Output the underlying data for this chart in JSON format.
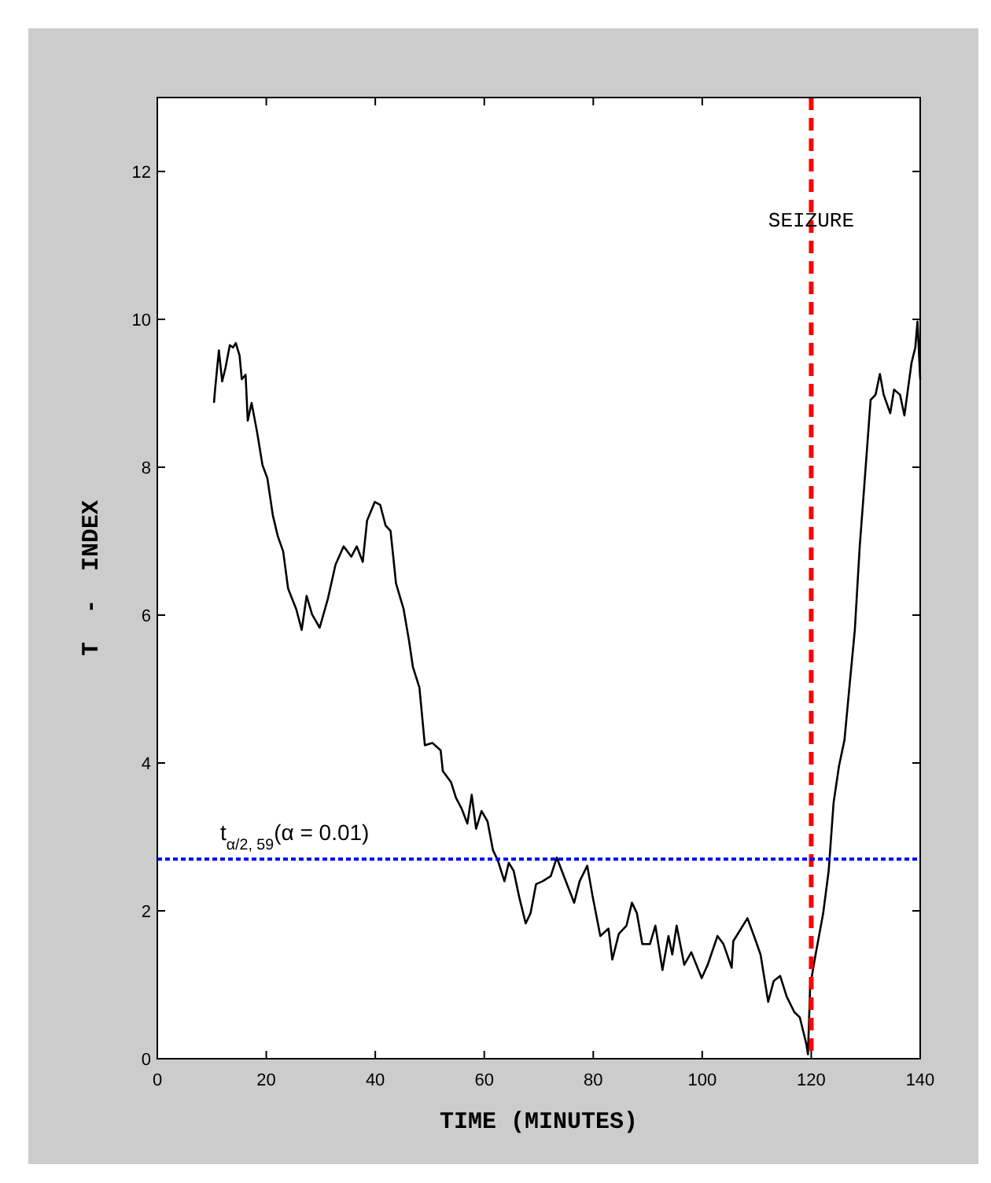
{
  "chart_data": {
    "type": "line",
    "xlabel": "TIME (MINUTES)",
    "ylabel": "T  -  INDEX",
    "xlim": [
      0,
      140
    ],
    "ylim": [
      0,
      13
    ],
    "xticks": [
      0,
      20,
      40,
      60,
      80,
      100,
      120,
      140
    ],
    "yticks": [
      0,
      2,
      4,
      6,
      8,
      10,
      12
    ],
    "grid": false,
    "marker": "none",
    "line_style": "solid",
    "series": [
      {
        "color": "#000000",
        "x": [
          10.4,
          10.6,
          11.3,
          11.9,
          12.5,
          13.3,
          13.9,
          14.4,
          15.1,
          15.5,
          16.2,
          16.6,
          17.3,
          18.3,
          19.3,
          20.2,
          21.2,
          22.1,
          23.1,
          24.0,
          25.5,
          26.5,
          27.4,
          28.4,
          29.8,
          31.3,
          32.7,
          34.2,
          35.6,
          36.6,
          37.7,
          38.5,
          39.9,
          40.9,
          41.9,
          42.8,
          43.3,
          43.8,
          45.2,
          46.2,
          46.9,
          48.1,
          49.1,
          50.5,
          52.0,
          52.4,
          53.9,
          54.8,
          55.8,
          56.9,
          57.7,
          58.5,
          59.5,
          60.6,
          61.6,
          62.5,
          63.7,
          64.5,
          65.4,
          66.4,
          67.6,
          68.5,
          69.5,
          70.7,
          72.2,
          73.3,
          74.6,
          76.5,
          77.5,
          78.9,
          79.9,
          81.3,
          82.8,
          83.5,
          84.7,
          86.1,
          87.1,
          88.0,
          89.0,
          90.4,
          91.4,
          92.7,
          93.8,
          94.5,
          95.3,
          96.7,
          98.0,
          99.9,
          101.0,
          102.8,
          103.9,
          105.4,
          105.7,
          108.3,
          109.7,
          110.7,
          112.1,
          113.1,
          114.3,
          115.5,
          116.9,
          117.9,
          118.5,
          119.1,
          119.4,
          119.8,
          120.8,
          122.2,
          123.2,
          124.1,
          125.1,
          126.1,
          127.0,
          128.0,
          128.9,
          129.7,
          130.9,
          131.8,
          132.6,
          133.3,
          134.5,
          135.2,
          136.3,
          137.1,
          138.4,
          139.1,
          139.5,
          140
        ],
        "values": [
          8.87,
          9.05,
          9.58,
          9.16,
          9.34,
          9.65,
          9.62,
          9.68,
          9.51,
          9.19,
          9.25,
          8.63,
          8.87,
          8.48,
          8.03,
          7.85,
          7.35,
          7.07,
          6.86,
          6.36,
          6.08,
          5.8,
          6.26,
          6.01,
          5.83,
          6.22,
          6.68,
          6.93,
          6.79,
          6.93,
          6.72,
          7.28,
          7.53,
          7.49,
          7.21,
          7.14,
          6.79,
          6.43,
          6.08,
          5.65,
          5.3,
          5.02,
          4.24,
          4.27,
          4.17,
          3.89,
          3.74,
          3.53,
          3.39,
          3.18,
          3.57,
          3.11,
          3.35,
          3.21,
          2.82,
          2.68,
          2.4,
          2.65,
          2.54,
          2.19,
          1.83,
          1.97,
          2.36,
          2.4,
          2.47,
          2.72,
          2.47,
          2.11,
          2.4,
          2.61,
          2.19,
          1.66,
          1.76,
          1.34,
          1.69,
          1.8,
          2.11,
          1.97,
          1.55,
          1.55,
          1.8,
          1.2,
          1.66,
          1.41,
          1.8,
          1.27,
          1.44,
          1.09,
          1.27,
          1.66,
          1.55,
          1.23,
          1.59,
          1.9,
          1.62,
          1.41,
          0.77,
          1.05,
          1.12,
          0.84,
          0.63,
          0.56,
          0.38,
          0.2,
          0.06,
          0.98,
          1.41,
          1.97,
          2.54,
          3.46,
          3.96,
          4.31,
          5.02,
          5.8,
          6.93,
          7.71,
          8.91,
          8.98,
          9.26,
          8.98,
          8.73,
          9.05,
          8.98,
          8.7,
          9.41,
          9.62,
          9.97,
          9.19
        ]
      }
    ],
    "ref_lines": [
      {
        "axis": "x",
        "value": 120,
        "label": "SEIZURE",
        "color": "#ff0000",
        "line_style": "dashed"
      },
      {
        "axis": "y",
        "value": 2.7,
        "color": "#0000ff",
        "line_style": "dotted"
      }
    ],
    "annotations": [
      "t$_{α/2, 59}$(α = 0.01)"
    ]
  }
}
